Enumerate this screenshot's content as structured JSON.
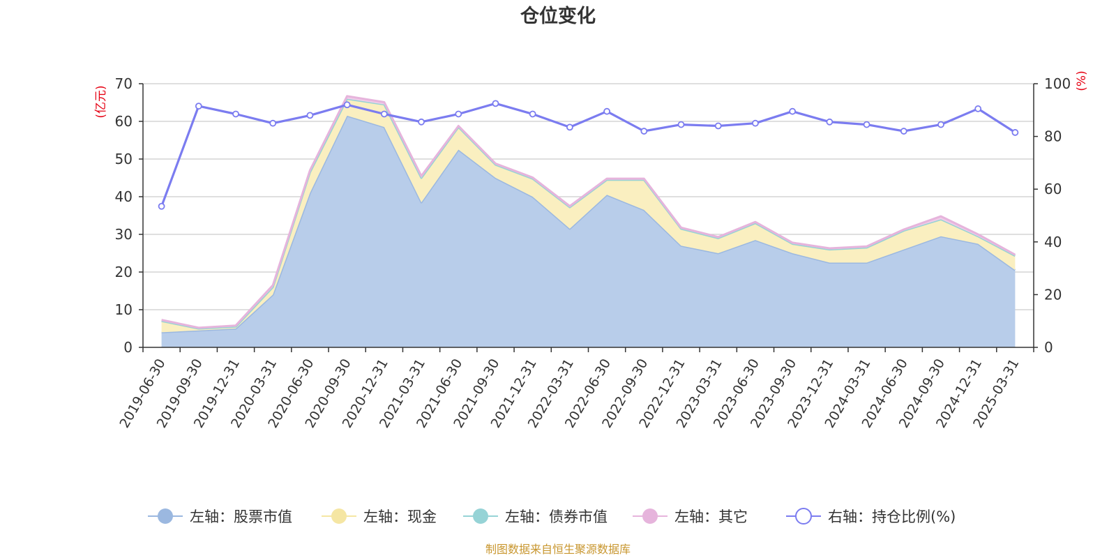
{
  "chart_data": {
    "type": "area",
    "title": "仓位变化",
    "categories": [
      "2019-06-30",
      "2019-09-30",
      "2019-12-31",
      "2020-03-31",
      "2020-06-30",
      "2020-09-30",
      "2020-12-31",
      "2021-03-31",
      "2021-06-30",
      "2021-09-30",
      "2021-12-31",
      "2022-03-31",
      "2022-06-30",
      "2022-09-30",
      "2022-12-31",
      "2023-03-31",
      "2023-06-30",
      "2023-09-30",
      "2023-12-31",
      "2024-03-31",
      "2024-06-30",
      "2024-09-30",
      "2024-12-31",
      "2025-03-31"
    ],
    "left_axis": {
      "unit": "(亿元)",
      "ylim": [
        0,
        70
      ],
      "ticks": [
        0,
        10,
        20,
        30,
        40,
        50,
        60,
        70
      ]
    },
    "right_axis": {
      "unit": "(%)",
      "ylim": [
        0,
        100
      ],
      "ticks": [
        0,
        20,
        40,
        60,
        80,
        100
      ]
    },
    "grid": true,
    "legend_position": "bottom",
    "series": [
      {
        "name": "左轴：股票市值",
        "axis": "left",
        "stack": true,
        "color": "#9bb8e0",
        "fill": "#b8cdea",
        "values": [
          4.0,
          4.5,
          5.0,
          14.0,
          41.0,
          61.5,
          58.5,
          38.5,
          52.5,
          45.0,
          40.0,
          31.5,
          40.5,
          36.5,
          27.0,
          25.0,
          28.5,
          25.0,
          22.5,
          22.5,
          26.0,
          29.5,
          27.5,
          20.5
        ]
      },
      {
        "name": "左轴：现金",
        "axis": "left",
        "stack": true,
        "color": "#f5e6a3",
        "fill": "#faefc0",
        "values": [
          3.0,
          0.5,
          0.5,
          2.0,
          5.5,
          4.5,
          6.0,
          6.5,
          6.0,
          3.5,
          4.8,
          5.7,
          4.0,
          8.0,
          4.5,
          4.0,
          4.5,
          2.5,
          3.5,
          4.0,
          5.0,
          4.5,
          2.0,
          3.8
        ]
      },
      {
        "name": "左轴：债券市值",
        "axis": "left",
        "stack": true,
        "color": "#96d3d6",
        "fill": "#b5e2e4",
        "values": [
          0,
          0,
          0,
          0,
          0,
          0,
          0,
          0,
          0,
          0,
          0,
          0,
          0,
          0,
          0,
          0,
          0,
          0,
          0,
          0,
          0,
          0,
          0,
          0
        ]
      },
      {
        "name": "左轴：其它",
        "axis": "left",
        "stack": true,
        "color": "#e6b4dc",
        "fill": "#f0cce8",
        "values": [
          0.3,
          0.2,
          0.3,
          0.5,
          0.5,
          0.7,
          0.6,
          0.5,
          0.3,
          0.3,
          0.3,
          0.3,
          0.3,
          0.3,
          0.3,
          0.3,
          0.3,
          0.3,
          0.3,
          0.3,
          0.3,
          0.8,
          0.5,
          0.3
        ]
      },
      {
        "name": "右轴：持仓比例(%)",
        "axis": "right",
        "stack": false,
        "color": "#7b7cf0",
        "values": [
          53.5,
          91.5,
          88.5,
          85.0,
          88.0,
          92.0,
          88.5,
          85.5,
          88.5,
          92.5,
          88.5,
          83.5,
          89.5,
          82.0,
          84.5,
          84.0,
          85.0,
          89.5,
          85.5,
          84.5,
          82.0,
          84.5,
          90.5,
          81.5
        ]
      }
    ]
  },
  "footer": {
    "source": "制图数据来自恒生聚源数据库"
  }
}
